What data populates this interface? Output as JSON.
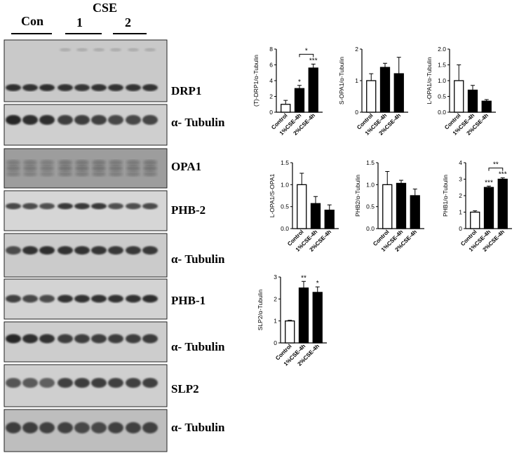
{
  "header": {
    "cse_label": "CSE",
    "groups": [
      "Con",
      "1",
      "2"
    ]
  },
  "blots": [
    {
      "label": "DRP1"
    },
    {
      "label": "α- Tubulin"
    },
    {
      "label": "OPA1"
    },
    {
      "label": "PHB-2"
    },
    {
      "label": "α- Tubulin"
    },
    {
      "label": "PHB-1"
    },
    {
      "label": "α- Tubulin"
    },
    {
      "label": "SLP2"
    },
    {
      "label": "α- Tubulin"
    }
  ],
  "chart_data": [
    {
      "type": "bar",
      "ylabel": "(T)-DRP1/α-Tubulin",
      "categories": [
        "Control",
        "1%CSE-4h",
        "2%CSE-4h"
      ],
      "values": [
        1.0,
        3.0,
        5.6
      ],
      "errors": [
        0.5,
        0.4,
        0.5
      ],
      "ylim": [
        0,
        8
      ],
      "yticks": [
        "0",
        "2",
        "4",
        "6",
        "8"
      ],
      "sig": [
        "",
        "*",
        "***"
      ],
      "bracket": {
        "from": 1,
        "to": 2,
        "label": "*"
      },
      "fills": [
        "#ffffff",
        "#000000",
        "#000000"
      ]
    },
    {
      "type": "bar",
      "ylabel": "S-OPA1/α-Tubulin",
      "categories": [
        "Control",
        "1%CSE-4h",
        "2%CSE-4h"
      ],
      "values": [
        1.0,
        1.42,
        1.22
      ],
      "errors": [
        0.22,
        0.13,
        0.52
      ],
      "ylim": [
        0,
        2
      ],
      "yticks": [
        "0",
        "1",
        "2"
      ],
      "sig": [
        "",
        "",
        ""
      ],
      "bracket": null,
      "fills": [
        "#ffffff",
        "#000000",
        "#000000"
      ]
    },
    {
      "type": "bar",
      "ylabel": "L-OPA1/α-Tubulin",
      "categories": [
        "Control",
        "1%CSE-4h",
        "2%CSE-4h"
      ],
      "values": [
        1.0,
        0.7,
        0.35
      ],
      "errors": [
        0.5,
        0.15,
        0.05
      ],
      "ylim": [
        0,
        2
      ],
      "yticks": [
        "0.0",
        "0.5",
        "1.0",
        "1.5",
        "2.0"
      ],
      "sig": [
        "",
        "",
        ""
      ],
      "bracket": null,
      "fills": [
        "#ffffff",
        "#000000",
        "#000000"
      ]
    },
    {
      "type": "bar",
      "ylabel": "L-OPA1/S-OPA1",
      "categories": [
        "Control",
        "1%CSE-4h",
        "2%CSE-4h"
      ],
      "values": [
        1.0,
        0.57,
        0.42
      ],
      "errors": [
        0.26,
        0.16,
        0.12
      ],
      "ylim": [
        0,
        1.5
      ],
      "yticks": [
        "0.0",
        "0.5",
        "1.0",
        "1.5"
      ],
      "sig": [
        "",
        "",
        ""
      ],
      "bracket": null,
      "fills": [
        "#ffffff",
        "#000000",
        "#000000"
      ]
    },
    {
      "type": "bar",
      "ylabel": "PHB2/α-Tubulin",
      "categories": [
        "Control",
        "1%CSE-4h",
        "2%CSE-4h"
      ],
      "values": [
        1.0,
        1.03,
        0.75
      ],
      "errors": [
        0.3,
        0.07,
        0.15
      ],
      "ylim": [
        0,
        1.5
      ],
      "yticks": [
        "0.0",
        "0.5",
        "1.0",
        "1.5"
      ],
      "sig": [
        "",
        "",
        ""
      ],
      "bracket": null,
      "fills": [
        "#ffffff",
        "#000000",
        "#000000"
      ]
    },
    {
      "type": "bar",
      "ylabel": "PHB1/α-Tubulin",
      "categories": [
        "Control",
        "1%CSE-4h",
        "2%CSE-4h"
      ],
      "values": [
        1.0,
        2.5,
        3.0
      ],
      "errors": [
        0.08,
        0.08,
        0.08
      ],
      "ylim": [
        0,
        4
      ],
      "yticks": [
        "0",
        "1",
        "2",
        "3",
        "4"
      ],
      "sig": [
        "",
        "***",
        "***"
      ],
      "bracket": {
        "from": 1,
        "to": 2,
        "label": "**"
      },
      "fills": [
        "#ffffff",
        "#000000",
        "#000000"
      ]
    },
    {
      "type": "bar",
      "ylabel": "SLP2/α-Tubulin",
      "categories": [
        "Control",
        "1%CSE-4h",
        "2%CSE-4h"
      ],
      "values": [
        1.0,
        2.5,
        2.3
      ],
      "errors": [
        0.03,
        0.3,
        0.25
      ],
      "ylim": [
        0,
        3
      ],
      "yticks": [
        "0",
        "1",
        "2",
        "3"
      ],
      "sig": [
        "",
        "**",
        "*"
      ],
      "bracket": null,
      "fills": [
        "#ffffff",
        "#000000",
        "#000000"
      ]
    }
  ]
}
